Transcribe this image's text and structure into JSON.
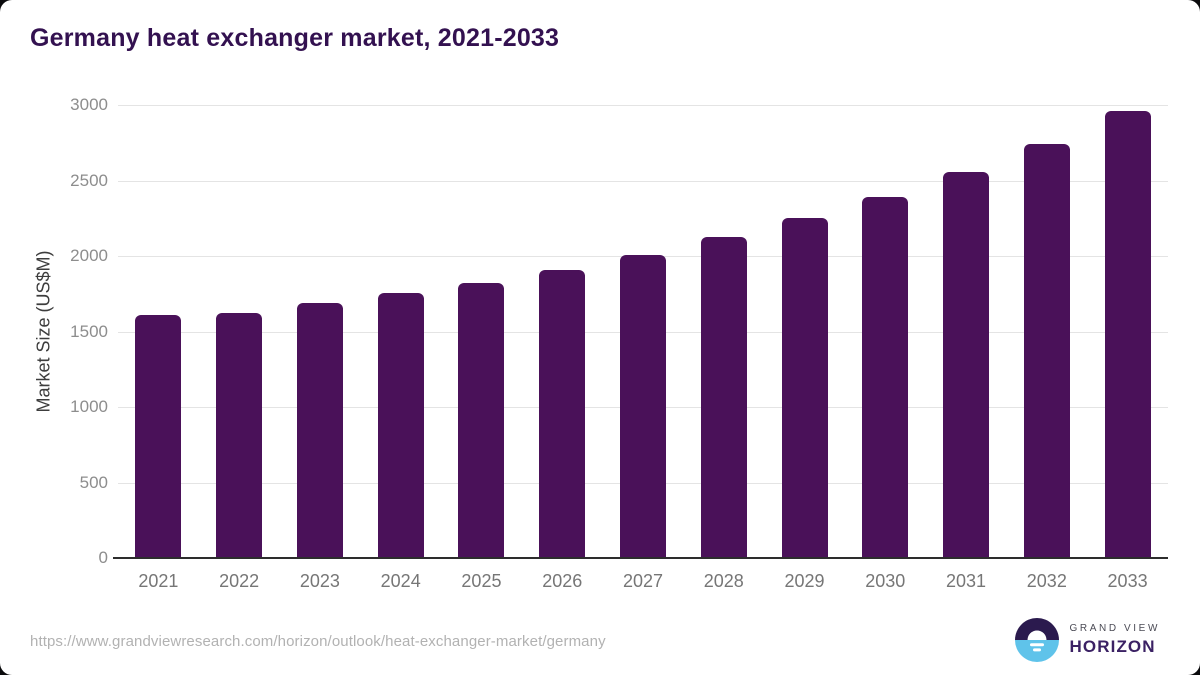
{
  "title": "Germany heat exchanger market, 2021-2033",
  "chart_data": {
    "type": "bar",
    "title": "Germany heat exchanger market, 2021-2033",
    "categories": [
      "2021",
      "2022",
      "2023",
      "2024",
      "2025",
      "2026",
      "2027",
      "2028",
      "2029",
      "2030",
      "2031",
      "2032",
      "2033"
    ],
    "values": [
      1610,
      1625,
      1687,
      1753,
      1824,
      1908,
      2007,
      2125,
      2252,
      2389,
      2555,
      2740,
      2960
    ],
    "xlabel": "",
    "ylabel": "Market Size (US$M)",
    "ylim": [
      0,
      3000
    ],
    "yticks": [
      0,
      500,
      1000,
      1500,
      2000,
      2500,
      3000
    ],
    "grid": true,
    "legend": "none",
    "bar_color": "#4a1159"
  },
  "footer": {
    "source_url": "https://www.grandviewresearch.com/horizon/outlook/heat-exchanger-market/germany",
    "logo": {
      "line1": "GRAND VIEW",
      "line2": "HORIZON",
      "icon": "horizon-sun-over-water-icon"
    }
  },
  "colors": {
    "title": "#331150",
    "bar": "#4a1159",
    "gridline": "#e4e4e4",
    "axis_line": "#2d2d2d",
    "tick_label": "#8d8d8d",
    "x_label": "#767676",
    "source_text": "#b2b2b2",
    "logo_top": "#2b1a4e",
    "logo_bottom": "#5fc3ea"
  }
}
